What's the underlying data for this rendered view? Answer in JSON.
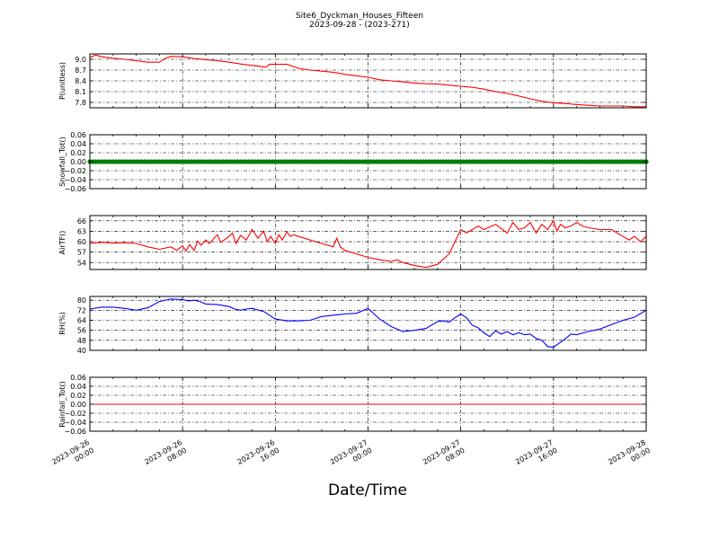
{
  "figure": {
    "title": "Site6_Dyckman_Houses_Fifteen",
    "subtitle": "2023-09-28 - (2023-271)",
    "xlabel": "Date/Time",
    "x_ticks": [
      "2023-09-26 00:00",
      "2023-09-26 08:00",
      "2023-09-26 16:00",
      "2023-09-27 00:00",
      "2023-09-27 08:00",
      "2023-09-27 16:00",
      "2023-09-28 00:00"
    ],
    "x_tick_lines": [
      [
        "2023-09-26",
        "00:00"
      ],
      [
        "2023-09-26",
        "08:00"
      ],
      [
        "2023-09-26",
        "16:00"
      ],
      [
        "2023-09-27",
        "00:00"
      ],
      [
        "2023-09-27",
        "08:00"
      ],
      [
        "2023-09-27",
        "16:00"
      ],
      [
        "2023-09-28",
        "00:00"
      ]
    ],
    "xlim_hours": [
      0,
      48
    ],
    "grid": true
  },
  "chart_data": [
    {
      "type": "line",
      "ylabel": "P(unitless)",
      "color": "#ff0000",
      "ylim": [
        7.65,
        9.15
      ],
      "yticks": [
        7.8,
        8.1,
        8.4,
        8.7,
        9.0
      ],
      "ytick_labels": [
        "7.8",
        "8.1",
        "8.4",
        "8.7",
        "9.0"
      ],
      "x_hours": [
        0,
        0.5,
        1,
        2,
        3,
        4,
        5,
        6,
        6.3,
        6.6,
        7,
        8,
        9,
        10,
        11,
        12,
        13,
        14,
        15,
        15.2,
        15.5,
        17,
        18,
        19,
        20,
        21,
        22,
        23,
        24,
        25,
        26,
        27,
        28,
        29,
        30,
        31,
        32,
        33,
        34,
        35,
        36,
        37,
        38,
        39,
        40,
        41,
        42,
        43,
        44,
        45,
        46,
        47,
        48
      ],
      "values": [
        9.05,
        9.12,
        9.07,
        9.03,
        9.0,
        8.96,
        8.92,
        8.92,
        8.98,
        9.04,
        9.08,
        9.07,
        9.02,
        8.99,
        8.96,
        8.92,
        8.87,
        8.83,
        8.79,
        8.78,
        8.86,
        8.86,
        8.75,
        8.7,
        8.67,
        8.64,
        8.58,
        8.54,
        8.5,
        8.43,
        8.4,
        8.37,
        8.34,
        8.32,
        8.31,
        8.28,
        8.25,
        8.22,
        8.17,
        8.1,
        8.05,
        7.98,
        7.9,
        7.83,
        7.79,
        7.77,
        7.74,
        7.72,
        7.7,
        7.7,
        7.7,
        7.68,
        7.68
      ]
    },
    {
      "type": "scatter",
      "ylabel": "Snowfall_Tot()",
      "color": "#007f00",
      "ylim": [
        -0.06,
        0.06
      ],
      "yticks": [
        -0.06,
        -0.04,
        -0.02,
        0.0,
        0.02,
        0.04,
        0.06
      ],
      "ytick_labels": [
        "−0.06",
        "−0.04",
        "−0.02",
        "0.00",
        "0.02",
        "0.04",
        "0.06"
      ],
      "constant_value": 0.0,
      "points_every_hours": 0.25
    },
    {
      "type": "line",
      "ylabel": "AirTF()",
      "color": "#ff0000",
      "ylim": [
        52,
        67.5
      ],
      "yticks": [
        54,
        57,
        60,
        63,
        66
      ],
      "ytick_labels": [
        "54",
        "57",
        "60",
        "63",
        "66"
      ],
      "x_hours": [
        0,
        1,
        2,
        3,
        4,
        5,
        6,
        7,
        7.5,
        8,
        8.3,
        8.6,
        9,
        9.3,
        9.6,
        10,
        10.3,
        11,
        11.3,
        12,
        12.3,
        12.6,
        13,
        13.5,
        14,
        14.5,
        15,
        15.3,
        15.6,
        16,
        16.3,
        16.6,
        17,
        17.3,
        17.6,
        18,
        19,
        20,
        21,
        21.3,
        21.6,
        22,
        23,
        24,
        25,
        26,
        26.5,
        27,
        28,
        29,
        30,
        31,
        31.5,
        32,
        32.5,
        33,
        33.5,
        34,
        35,
        36,
        36.5,
        37,
        37.5,
        38,
        38.5,
        39,
        39.5,
        40,
        40.3,
        40.6,
        41,
        41.5,
        42,
        42.5,
        43,
        44,
        45,
        46,
        46.5,
        47,
        47.5,
        48
      ],
      "values": [
        59.5,
        59.8,
        59.6,
        59.7,
        59.5,
        58.5,
        57.8,
        58.5,
        57.5,
        58.8,
        57.3,
        59.2,
        57.5,
        60.2,
        59.0,
        60.5,
        59.5,
        62.0,
        59.8,
        61.5,
        62.5,
        59.5,
        61.8,
        60.5,
        63.5,
        61.0,
        63.0,
        60.0,
        61.5,
        59.5,
        62.0,
        60.5,
        62.8,
        61.5,
        62.0,
        61.5,
        60.5,
        59.5,
        58.5,
        61.0,
        58.5,
        57.5,
        56.5,
        55.5,
        54.8,
        54.3,
        54.8,
        54.0,
        53.2,
        52.6,
        53.5,
        56.5,
        60.0,
        63.5,
        62.5,
        63.5,
        64.5,
        63.5,
        65.0,
        62.5,
        65.5,
        63.5,
        64.0,
        65.5,
        62.5,
        65.0,
        63.5,
        66.0,
        63.0,
        65.0,
        64.0,
        64.5,
        65.5,
        64.5,
        64.0,
        63.5,
        63.5,
        61.5,
        60.5,
        61.5,
        60.0,
        61.5
      ]
    },
    {
      "type": "line",
      "ylabel": "RH(%)",
      "color": "#0000ff",
      "ylim": [
        40,
        83
      ],
      "yticks": [
        40,
        48,
        56,
        64,
        72,
        80
      ],
      "ytick_labels": [
        "40",
        "48",
        "56",
        "64",
        "72",
        "80"
      ],
      "x_hours": [
        0,
        1,
        2,
        3,
        4,
        5,
        6,
        7,
        8,
        8.5,
        9,
        9.5,
        10,
        11,
        12,
        12.5,
        13,
        13.5,
        14,
        15,
        16,
        17,
        18,
        19,
        20,
        21,
        22,
        23,
        24,
        25,
        26,
        27,
        28,
        29,
        30,
        30.5,
        31,
        31.5,
        32,
        32.5,
        33,
        33.5,
        34,
        34.5,
        35,
        35.5,
        36,
        36.5,
        37,
        37.5,
        38,
        38.5,
        39,
        39.5,
        40,
        41,
        41.5,
        42,
        43,
        44,
        45,
        46,
        47,
        48
      ],
      "values": [
        73,
        74.5,
        74.5,
        73.5,
        72,
        74,
        79,
        81,
        80.5,
        79.5,
        80,
        79,
        77,
        76.5,
        75,
        73,
        72,
        73,
        73.5,
        71,
        65,
        63.5,
        63.5,
        64,
        67,
        68,
        69,
        69.5,
        73.5,
        65,
        59,
        55,
        56,
        57.5,
        63,
        63.5,
        62.5,
        66,
        69,
        66,
        60,
        58,
        54,
        51,
        55.5,
        53,
        55,
        52.5,
        54,
        52.5,
        53,
        49.5,
        48,
        43,
        42.5,
        49,
        53,
        52.5,
        55,
        57,
        60.5,
        64,
        66.5,
        72
      ]
    },
    {
      "type": "line",
      "ylabel": "Rainfall_Tot()",
      "color": "#ff0000",
      "ylim": [
        -0.06,
        0.06
      ],
      "yticks": [
        -0.06,
        -0.04,
        -0.02,
        0.0,
        0.02,
        0.04,
        0.06
      ],
      "ytick_labels": [
        "−0.06",
        "−0.04",
        "−0.02",
        "0.00",
        "0.02",
        "0.04",
        "0.06"
      ],
      "x_hours": [
        0,
        48
      ],
      "values": [
        0,
        0
      ]
    }
  ]
}
